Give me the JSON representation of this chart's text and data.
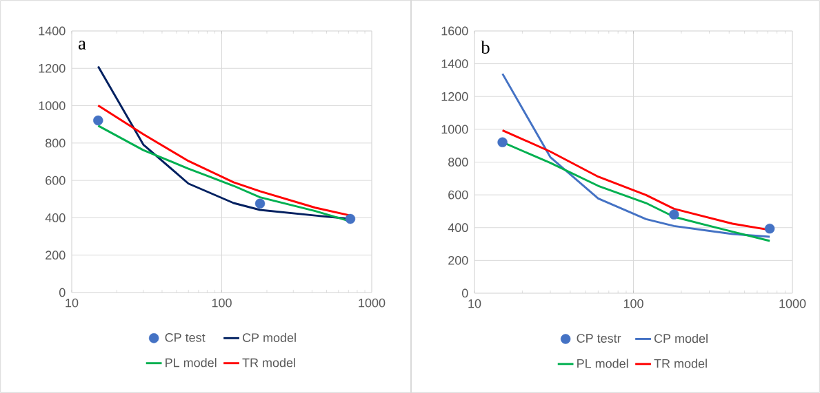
{
  "chart_data": [
    {
      "type": "line",
      "annotations": [
        "a"
      ],
      "xlim": [
        10,
        1000
      ],
      "xticks": [
        10,
        100,
        1000
      ],
      "ylim": [
        0,
        1400
      ],
      "yticks": [
        0,
        200,
        400,
        600,
        800,
        1000,
        1200,
        1400
      ],
      "log": "x",
      "grid": true,
      "legend": "bottom",
      "series": [
        {
          "name": "CP test",
          "type": "scatter",
          "marker": "circle",
          "color": "#4472c4",
          "x": [
            15,
            180,
            720
          ],
          "values": [
            921,
            476,
            394
          ]
        },
        {
          "name": "CP model",
          "color": "#002060",
          "x": [
            15,
            30,
            60,
            120,
            180,
            420,
            720
          ],
          "values": [
            1210,
            792,
            583,
            479,
            442,
            412,
            394
          ]
        },
        {
          "name": "PL model",
          "color": "#00b050",
          "x": [
            15,
            30,
            60,
            120,
            180,
            420,
            720
          ],
          "values": [
            893,
            762,
            663,
            571,
            510,
            436,
            381
          ]
        },
        {
          "name": "TR model",
          "color": "#ff0000",
          "x": [
            15,
            30,
            60,
            120,
            180,
            420,
            720
          ],
          "values": [
            1001,
            847,
            704,
            590,
            542,
            454,
            412
          ]
        }
      ]
    },
    {
      "type": "line",
      "annotations": [
        "b"
      ],
      "xlim": [
        10,
        1000
      ],
      "xticks": [
        10,
        100,
        1000
      ],
      "ylim": [
        0,
        1600
      ],
      "yticks": [
        0,
        200,
        400,
        600,
        800,
        1000,
        1200,
        1400,
        1600
      ],
      "log": "x",
      "grid": true,
      "legend": "bottom",
      "series": [
        {
          "name": "CP testr",
          "type": "scatter",
          "marker": "circle",
          "color": "#4472c4",
          "x": [
            15,
            180,
            720
          ],
          "values": [
            921,
            480,
            394
          ]
        },
        {
          "name": "CP model",
          "color": "#4472c4",
          "x": [
            15,
            30,
            60,
            120,
            180,
            420,
            720
          ],
          "values": [
            1339,
            830,
            578,
            452,
            410,
            361,
            344
          ]
        },
        {
          "name": "PL model",
          "color": "#00b050",
          "x": [
            15,
            30,
            60,
            120,
            180,
            420,
            720
          ],
          "values": [
            921,
            795,
            655,
            550,
            466,
            375,
            319
          ]
        },
        {
          "name": "TR model",
          "color": "#ff0000",
          "x": [
            15,
            30,
            60,
            120,
            180,
            420,
            720
          ],
          "values": [
            994,
            864,
            711,
            599,
            515,
            424,
            386
          ]
        }
      ]
    }
  ]
}
